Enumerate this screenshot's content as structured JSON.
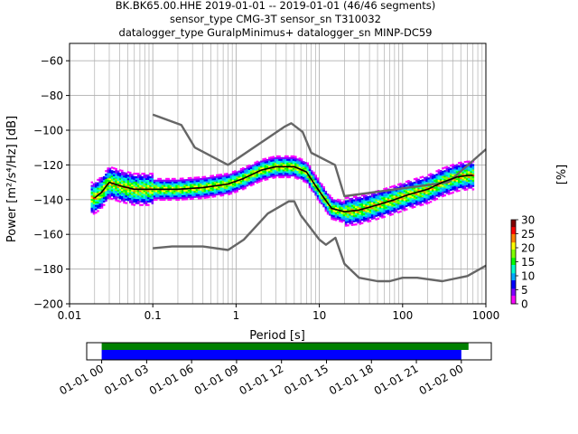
{
  "chart_data": {
    "type": "heatmap",
    "title_lines": [
      "BK.BK65.00.HHE   2019-01-01 -- 2019-01-01  (46/46 segments)",
      "sensor_type CMG-3T sensor_sn T310032",
      "datalogger_type GuralpMinimus+ datalogger_sn MINP-DC59"
    ],
    "xlabel": "Period [s]",
    "ylabel": "Power [m²/s⁴/Hz] [dB]",
    "x_scale": "log",
    "xlim": [
      0.01,
      1000
    ],
    "ylim": [
      -200,
      -50
    ],
    "x_ticks": [
      0.01,
      0.1,
      1,
      10,
      100,
      1000
    ],
    "x_tick_labels": [
      "0.01",
      "0.1",
      "1",
      "10",
      "100",
      "1000"
    ],
    "y_ticks": [
      -200,
      -180,
      -160,
      -140,
      -120,
      -100,
      -80,
      -60
    ],
    "y_tick_labels": [
      "−200",
      "−180",
      "−160",
      "−140",
      "−120",
      "−100",
      "−80",
      "−60"
    ],
    "grid": true,
    "noise_model_color": "#666666",
    "noise_model_high": [
      [
        0.1,
        -91
      ],
      [
        0.22,
        -97
      ],
      [
        0.32,
        -110
      ],
      [
        0.8,
        -120
      ],
      [
        3.8,
        -98
      ],
      [
        4.6,
        -96
      ],
      [
        6.3,
        -101
      ],
      [
        8,
        -113
      ],
      [
        15.4,
        -120
      ],
      [
        20,
        -138
      ],
      [
        354,
        -130
      ],
      [
        1000,
        -111
      ]
    ],
    "noise_model_low": [
      [
        0.1,
        -168
      ],
      [
        0.17,
        -167
      ],
      [
        0.4,
        -167
      ],
      [
        0.8,
        -169
      ],
      [
        1.24,
        -163
      ],
      [
        2.4,
        -148
      ],
      [
        4.3,
        -141
      ],
      [
        5,
        -141
      ],
      [
        6,
        -149
      ],
      [
        10,
        -163
      ],
      [
        12,
        -166
      ],
      [
        15.6,
        -162
      ],
      [
        20,
        -177
      ],
      [
        30,
        -185
      ],
      [
        50,
        -187
      ],
      [
        70,
        -187
      ],
      [
        100,
        -185
      ],
      [
        150,
        -185
      ],
      [
        300,
        -187
      ],
      [
        600,
        -184
      ],
      [
        1000,
        -178
      ]
    ],
    "median_line_color": "#000000",
    "median": [
      [
        0.02,
        -139
      ],
      [
        0.024,
        -136
      ],
      [
        0.03,
        -130
      ],
      [
        0.04,
        -132
      ],
      [
        0.06,
        -134
      ],
      [
        0.1,
        -134
      ],
      [
        0.2,
        -134
      ],
      [
        0.4,
        -133
      ],
      [
        0.8,
        -131
      ],
      [
        1.2,
        -128
      ],
      [
        2,
        -123
      ],
      [
        3,
        -121
      ],
      [
        5,
        -121
      ],
      [
        7,
        -124
      ],
      [
        9,
        -132
      ],
      [
        11,
        -138
      ],
      [
        14,
        -145
      ],
      [
        20,
        -147
      ],
      [
        30,
        -146
      ],
      [
        50,
        -143
      ],
      [
        80,
        -140
      ],
      [
        120,
        -137
      ],
      [
        200,
        -134
      ],
      [
        300,
        -130
      ],
      [
        450,
        -127
      ],
      [
        600,
        -126
      ],
      [
        700,
        -126
      ]
    ],
    "psd_extent": [
      0.018,
      720
    ],
    "colorbar": {
      "label": "[%]",
      "range": [
        0,
        30
      ],
      "ticks": [
        0,
        5,
        10,
        15,
        20,
        25,
        30
      ],
      "tick_labels": [
        "0",
        "5",
        "10",
        "15",
        "20",
        "25",
        "30"
      ],
      "colors": [
        "#ffffff",
        "#ff00ff",
        "#8000ff",
        "#0000ff",
        "#00aaff",
        "#00ffcc",
        "#00ff00",
        "#80ff00",
        "#ffff00",
        "#ff8000",
        "#ff0000",
        "#800000"
      ]
    },
    "coverage": {
      "x_tick_labels": [
        "01-01 00",
        "01-01 03",
        "01-01 06",
        "01-01 09",
        "01-01 12",
        "01-01 15",
        "01-01 18",
        "01-01 21",
        "01-02 00"
      ],
      "green_bar_color": "#008000",
      "blue_bar_color": "#0000ff",
      "green_fraction": [
        0.0,
        0.9
      ],
      "blue_fraction": [
        0.0,
        0.87
      ],
      "axis_span_hours": [
        -1,
        26
      ],
      "tick_hours": [
        0,
        3,
        6,
        9,
        12,
        15,
        18,
        21,
        24
      ]
    }
  }
}
